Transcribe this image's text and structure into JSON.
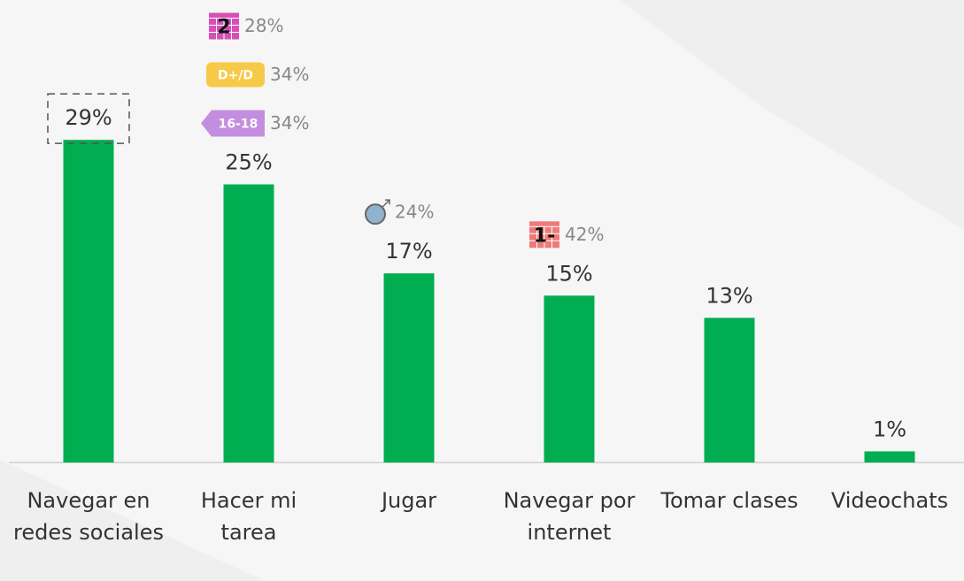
{
  "chart_data": {
    "type": "bar",
    "categories": [
      "Navegar en redes sociales",
      "Hacer mi tarea",
      "Jugar",
      "Navegar por internet",
      "Tomar clases",
      "Videochats"
    ],
    "values": [
      29,
      25,
      17,
      15,
      13,
      1
    ],
    "value_labels": [
      "29%",
      "25%",
      "17%",
      "15%",
      "13%",
      "1%"
    ],
    "color": "#00ad50",
    "highlights": [
      [],
      [
        {
          "badge": "16-18",
          "value": 34,
          "value_label": "34%",
          "color": "#c38ee0"
        },
        {
          "badge": "D+/D",
          "value": 34,
          "value_label": "34%",
          "color": "#f7c948"
        },
        {
          "badge": "2",
          "value": 28,
          "value_label": "28%",
          "color": "#d64fb8"
        }
      ],
      [
        {
          "value": 24,
          "value_label": "24%",
          "color": "#8fb3cc"
        }
      ],
      [
        {
          "badge": "1-",
          "value": 42,
          "value_label": "42%",
          "color": "#f07a7a"
        }
      ],
      [],
      []
    ]
  }
}
